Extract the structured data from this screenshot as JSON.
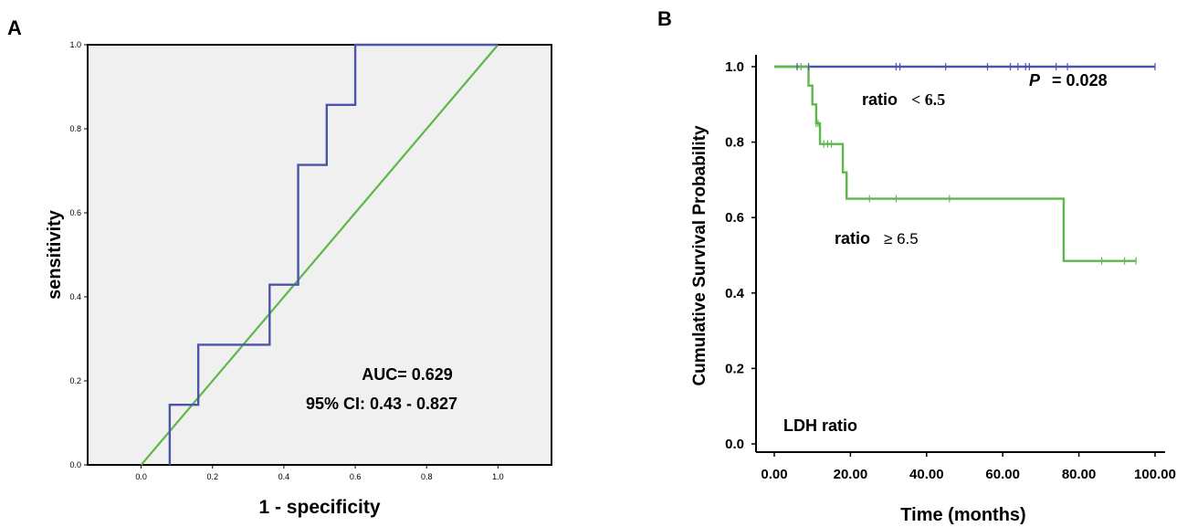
{
  "chart_data": [
    {
      "panel": "A",
      "type": "line",
      "xlabel": "1 - specificity",
      "ylabel": "sensitivity",
      "xlim": [
        -0.15,
        1.15
      ],
      "ylim": [
        0,
        1
      ],
      "xticks": [
        "0.0",
        "0.2",
        "0.4",
        "0.6",
        "0.8",
        "1.0"
      ],
      "yticks": [
        "0.0",
        "0.2",
        "0.4",
        "0.6",
        "0.8",
        "1.0"
      ],
      "series": [
        {
          "color": "#4a55a8",
          "x": [
            0.08,
            0.08,
            0.16,
            0.16,
            0.36,
            0.36,
            0.44,
            0.44,
            0.52,
            0.52,
            0.6,
            0.6,
            1.0
          ],
          "y": [
            0.0,
            0.143,
            0.143,
            0.286,
            0.286,
            0.429,
            0.429,
            0.714,
            0.714,
            0.857,
            0.857,
            1.0,
            1.0
          ]
        },
        {
          "color": "#5cb84a",
          "x": [
            0,
            1
          ],
          "y": [
            0,
            1
          ]
        }
      ],
      "annotations": [
        "AUC= 0.629",
        "95% CI: 0.43 - 0.827"
      ],
      "grid": false
    },
    {
      "panel": "B",
      "type": "line",
      "xlabel": "Time (months)",
      "ylabel": "Cumulative Survival Probability",
      "xlim": [
        0,
        100
      ],
      "ylim": [
        0,
        1
      ],
      "xticks": [
        "0.00",
        "20.00",
        "40.00",
        "60.00",
        "80.00",
        "100.00"
      ],
      "yticks": [
        "0.0",
        "0.2",
        "0.4",
        "0.6",
        "0.8",
        "1.0"
      ],
      "series": [
        {
          "color": "#4a55a8",
          "steps_x": [
            0,
            100
          ],
          "steps_y": [
            1.0,
            1.0
          ],
          "censored_x": [
            6,
            9,
            32,
            33,
            45,
            56,
            62,
            64,
            66,
            67,
            74,
            77,
            100
          ]
        },
        {
          "color": "#5cb84a",
          "steps_x": [
            0,
            8.5,
            9,
            10,
            11,
            12,
            17.5,
            18,
            19,
            76,
            95
          ],
          "steps_y": [
            1.0,
            1.0,
            0.95,
            0.9,
            0.85,
            0.795,
            0.795,
            0.72,
            0.65,
            0.485,
            0.485
          ],
          "censored_x": [
            7,
            11,
            11.5,
            13,
            14,
            15,
            25,
            32,
            46,
            86,
            92,
            95
          ]
        }
      ],
      "annotations": {
        "p_label": "P",
        "p_value": "= 0.028",
        "label_low_word": "ratio",
        "label_low_sym": "< 6.5",
        "label_high_word": "ratio",
        "label_high_sym": "≥ 6.5",
        "corner": "LDH ratio"
      }
    }
  ]
}
